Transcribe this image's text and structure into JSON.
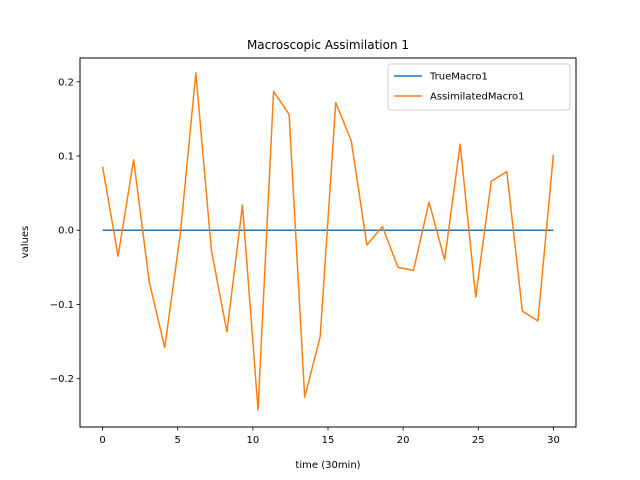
{
  "chart_data": {
    "type": "line",
    "title": "Macroscopic Assimilation 1",
    "xlabel": "time (30min)",
    "ylabel": "values",
    "xlim": [
      -1.5,
      31.5
    ],
    "ylim": [
      -0.265,
      0.232
    ],
    "xticks": [
      0,
      5,
      10,
      15,
      20,
      25,
      30
    ],
    "xtick_labels": [
      "0",
      "5",
      "10",
      "15",
      "20",
      "25",
      "30"
    ],
    "yticks": [
      -0.2,
      -0.1,
      0.0,
      0.1,
      0.2
    ],
    "ytick_labels": [
      "−0.2",
      "−0.1",
      "0.0",
      "0.1",
      "0.2"
    ],
    "grid": false,
    "legend_position": "top-right",
    "x": [
      0,
      1.034,
      2.069,
      3.103,
      4.138,
      5.172,
      6.207,
      7.241,
      8.276,
      9.31,
      10.345,
      11.379,
      12.414,
      13.448,
      14.483,
      15.517,
      16.552,
      17.586,
      18.621,
      19.655,
      20.69,
      21.724,
      22.759,
      23.793,
      24.828,
      25.862,
      26.897,
      27.931,
      28.966,
      30.0
    ],
    "series": [
      {
        "name": "TrueMacro1",
        "color": "#1f77b4",
        "values": [
          0,
          0,
          0,
          0,
          0,
          0,
          0,
          0,
          0,
          0,
          0,
          0,
          0,
          0,
          0,
          0,
          0,
          0,
          0,
          0,
          0,
          0,
          0,
          0,
          0,
          0,
          0,
          0,
          0,
          0
        ]
      },
      {
        "name": "AssimilatedMacro1",
        "color": "#ff7f0e",
        "values": [
          0.086,
          -0.035,
          0.095,
          -0.069,
          -0.158,
          -0.005,
          0.212,
          -0.027,
          -0.137,
          0.034,
          -0.242,
          0.187,
          0.156,
          -0.225,
          -0.143,
          0.172,
          0.12,
          -0.02,
          0.005,
          -0.05,
          -0.054,
          0.038,
          -0.04,
          0.116,
          -0.09,
          0.066,
          0.079,
          -0.109,
          -0.122,
          0.102
        ]
      }
    ]
  }
}
